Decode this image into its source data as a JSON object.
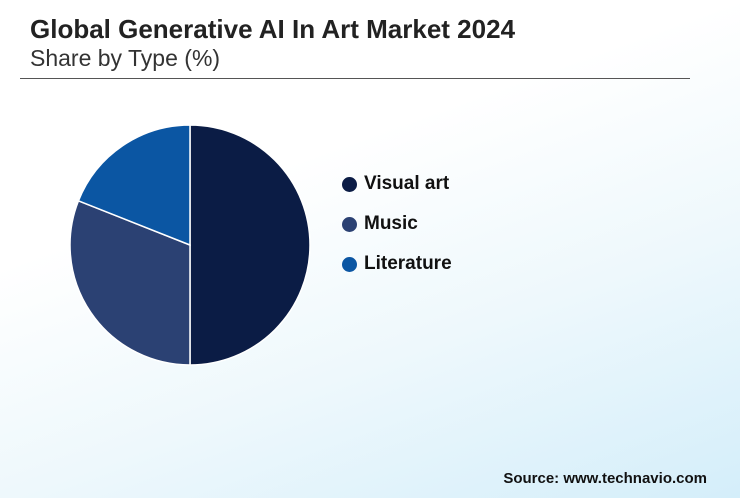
{
  "header": {
    "title": "Global Generative AI In Art Market 2024",
    "subtitle": "Share by Type (%)"
  },
  "chart_data": {
    "type": "pie",
    "categories": [
      "Visual art",
      "Music",
      "Literature"
    ],
    "values": [
      50,
      31,
      19
    ],
    "colors": [
      "#0b1c45",
      "#2b4173",
      "#0b56a3"
    ],
    "legend_position": "right"
  },
  "footer": {
    "source": "Source: www.technavio.com"
  }
}
